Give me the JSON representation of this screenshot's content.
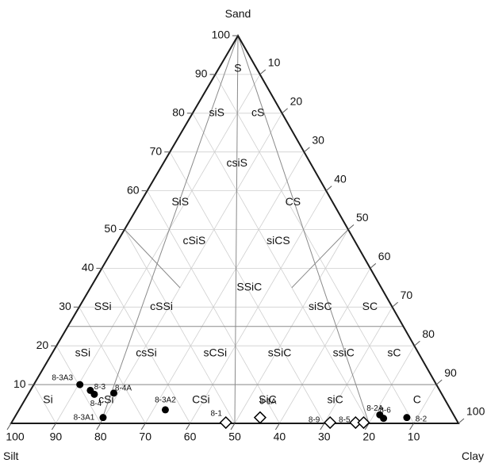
{
  "chart_data": {
    "type": "scatter",
    "subtype": "ternary",
    "axes": {
      "top": "Sand",
      "left": "Silt",
      "right": "Clay"
    },
    "range": [
      0,
      100
    ],
    "ticks": {
      "sand": [
        "10",
        "20",
        "30",
        "40",
        "50",
        "60",
        "70",
        "80",
        "90",
        "100"
      ],
      "silt": [
        "90",
        "80",
        "70",
        "60",
        "50",
        "40",
        "30",
        "20",
        "10",
        "100"
      ],
      "clay": [
        "10",
        "20",
        "30",
        "40",
        "50",
        "60",
        "70",
        "80",
        "90",
        "100"
      ]
    },
    "classes": [
      {
        "label": "S",
        "sand": 91.5,
        "silt": 4.2,
        "clay": 4.3
      },
      {
        "label": "siS",
        "sand": 80,
        "silt": 14.6,
        "clay": 5.4
      },
      {
        "label": "cS",
        "sand": 80,
        "silt": 5.4,
        "clay": 14.6
      },
      {
        "label": "csiS",
        "sand": 67,
        "silt": 16.5,
        "clay": 16.5
      },
      {
        "label": "SiS",
        "sand": 57,
        "silt": 34.1,
        "clay": 8.9
      },
      {
        "label": "CS",
        "sand": 57,
        "silt": 8.9,
        "clay": 34.1
      },
      {
        "label": "cSiS",
        "sand": 47,
        "silt": 35.9,
        "clay": 17.1
      },
      {
        "label": "siCS",
        "sand": 47,
        "silt": 17.1,
        "clay": 35.9
      },
      {
        "label": "SSiC",
        "sand": 35,
        "silt": 29.5,
        "clay": 35.5
      },
      {
        "label": "SSi",
        "sand": 30,
        "silt": 64.7,
        "clay": 5.3
      },
      {
        "label": "cSSi",
        "sand": 30,
        "silt": 51.6,
        "clay": 18.4
      },
      {
        "label": "siSC",
        "sand": 30,
        "silt": 16.1,
        "clay": 53.9
      },
      {
        "label": "SC",
        "sand": 30,
        "silt": 5,
        "clay": 65
      },
      {
        "label": "sSi",
        "sand": 18,
        "silt": 75.1,
        "clay": 6.9
      },
      {
        "label": "csSi",
        "sand": 18,
        "silt": 60.9,
        "clay": 21.1
      },
      {
        "label": "sCSi",
        "sand": 18,
        "silt": 45.5,
        "clay": 36.5
      },
      {
        "label": "sSiC",
        "sand": 18,
        "silt": 31.1,
        "clay": 50.9
      },
      {
        "label": "ssiC",
        "sand": 18,
        "silt": 16.8,
        "clay": 65.2
      },
      {
        "label": "sC",
        "sand": 18,
        "silt": 5.5,
        "clay": 76.5
      },
      {
        "label": "Si",
        "sand": 6,
        "silt": 88.8,
        "clay": 5.2
      },
      {
        "label": "cSi",
        "sand": 6,
        "silt": 75.8,
        "clay": 18.2
      },
      {
        "label": "CSi",
        "sand": 6,
        "silt": 54.6,
        "clay": 39.4
      },
      {
        "label": "SiC",
        "sand": 6,
        "silt": 39.7,
        "clay": 54.3
      },
      {
        "label": "siC",
        "sand": 6,
        "silt": 24.6,
        "clay": 69.4
      },
      {
        "label": "C",
        "sand": 6,
        "silt": 6.3,
        "clay": 87.7
      }
    ],
    "series": [
      {
        "marker": "circle",
        "points": [
          {
            "label": "8-3A3",
            "sand": 10,
            "silt": 79.7,
            "clay": 10.3
          },
          {
            "label": "8-3",
            "sand": 8.5,
            "silt": 78.1,
            "clay": 13.4
          },
          {
            "label": "8-4",
            "sand": 7.5,
            "silt": 77.7,
            "clay": 14.8
          },
          {
            "label": "8-4A",
            "sand": 7.8,
            "silt": 73.2,
            "clay": 19
          },
          {
            "label": "8-3A2",
            "sand": 3.5,
            "silt": 63.8,
            "clay": 32.7
          },
          {
            "label": "8-3A1",
            "sand": 1.5,
            "silt": 78.7,
            "clay": 19.8
          },
          {
            "label": "8-2A",
            "sand": 2.2,
            "silt": 16.5,
            "clay": 81.3
          },
          {
            "label": "8-6",
            "sand": 1.3,
            "silt": 16.1,
            "clay": 82.6
          },
          {
            "label": "8-2",
            "sand": 1.5,
            "silt": 10.8,
            "clay": 87.7
          }
        ]
      },
      {
        "marker": "diamond",
        "points": [
          {
            "label": "8-1",
            "sand": 0.2,
            "silt": 51.9,
            "clay": 47.9
          },
          {
            "label": "8-1A",
            "sand": 1.5,
            "silt": 43.6,
            "clay": 54.9
          },
          {
            "label": "8-9",
            "sand": 0.2,
            "silt": 28.6,
            "clay": 71.2
          },
          {
            "label": "8-5",
            "sand": 0.2,
            "silt": 22.9,
            "clay": 76.9
          },
          {
            "label": "8-2A",
            "sand": 0.2,
            "silt": 21.1,
            "clay": 78.7
          }
        ]
      }
    ],
    "class_boundaries": [
      [
        {
          "sand": 100,
          "silt": 0,
          "clay": 0
        },
        {
          "sand": 0,
          "silt": 80,
          "clay": 20
        }
      ],
      [
        {
          "sand": 100,
          "silt": 0,
          "clay": 0
        },
        {
          "sand": 0,
          "silt": 20,
          "clay": 80
        }
      ],
      [
        {
          "sand": 100,
          "silt": 0,
          "clay": 0
        },
        {
          "sand": 0,
          "silt": 50,
          "clay": 50
        }
      ],
      [
        {
          "sand": 50,
          "silt": 50,
          "clay": 0
        },
        {
          "sand": 35,
          "silt": 45,
          "clay": 20
        }
      ],
      [
        {
          "sand": 50,
          "silt": 0,
          "clay": 50
        },
        {
          "sand": 35,
          "silt": 20,
          "clay": 45
        }
      ],
      [
        {
          "sand": 25,
          "silt": 75,
          "clay": 0
        },
        {
          "sand": 25,
          "silt": 0,
          "clay": 75
        }
      ],
      [
        {
          "sand": 10,
          "silt": 90,
          "clay": 0
        },
        {
          "sand": 10,
          "silt": 0,
          "clay": 90
        }
      ]
    ]
  }
}
